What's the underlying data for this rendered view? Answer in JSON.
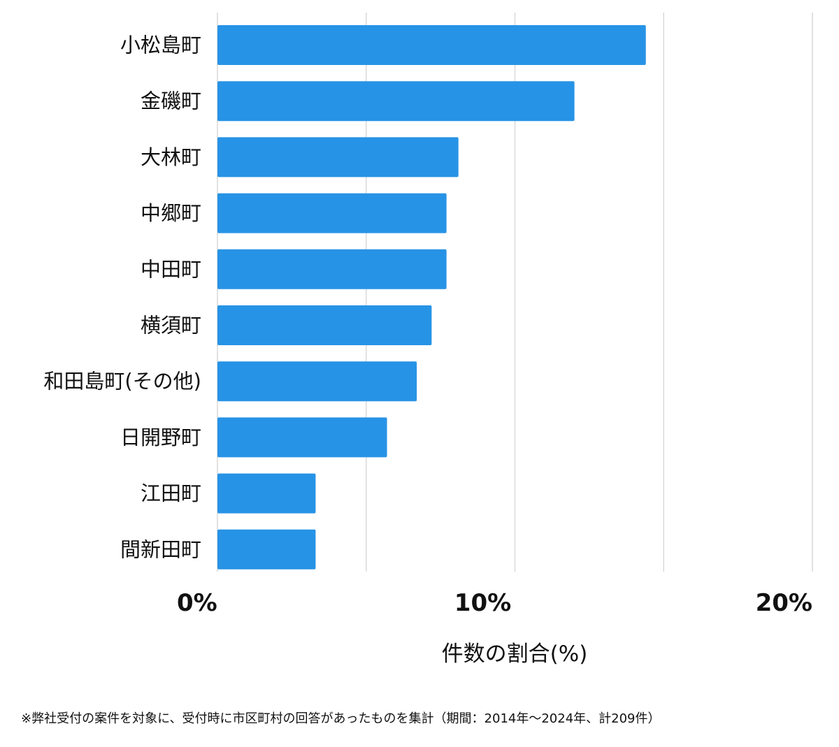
{
  "chart_data": {
    "type": "bar",
    "orientation": "horizontal",
    "categories": [
      "小松島町",
      "金磯町",
      "大林町",
      "中郷町",
      "中田町",
      "横須町",
      "和田島町(その他)",
      "日開野町",
      "江田町",
      "間新田町"
    ],
    "values": [
      14.4,
      12.0,
      8.1,
      7.7,
      7.7,
      7.2,
      6.7,
      5.7,
      3.3,
      3.3
    ],
    "xlabel": "件数の割合(%)",
    "xlim": [
      0,
      20
    ],
    "x_ticks": [
      {
        "value": 0,
        "label": "0%"
      },
      {
        "value": 10,
        "label": "10%"
      },
      {
        "value": 20,
        "label": "20%"
      }
    ],
    "gridlines": [
      0,
      5,
      10,
      15,
      20
    ],
    "grid": true,
    "bar_color": "#2793e6",
    "grid_color": "#d9d9d9"
  },
  "footnote": "※弊社受付の案件を対象に、受付時に市区町村の回答があったものを集計（期間：2014年〜2024年、計209件）"
}
